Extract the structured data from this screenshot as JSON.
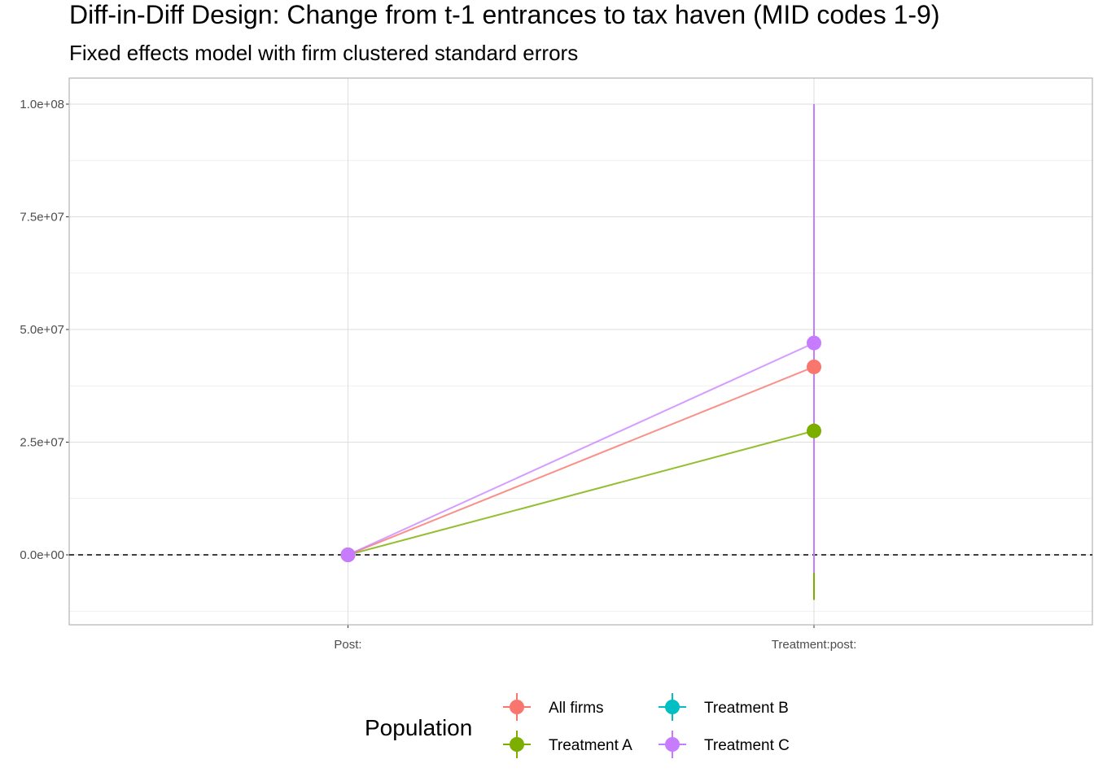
{
  "chart_data": {
    "type": "scatter",
    "title": "Diff-in-Diff Design: Change from t-1 entrances to tax haven (MID codes 1-9)",
    "subtitle": "Fixed effects model with firm clustered standard errors",
    "xlabel": "",
    "ylabel": "",
    "categories": [
      "Post:",
      "Treatment:post:"
    ],
    "ylim": [
      -12000000,
      104000000
    ],
    "yticks": [
      0,
      25000000,
      50000000,
      75000000,
      100000000
    ],
    "ytick_labels": [
      "0.0e+00",
      "2.5e+07",
      "5.0e+07",
      "7.5e+07",
      "1.0e+08"
    ],
    "reference_line": 0,
    "grid": true,
    "legend": {
      "title": "Population",
      "position": "bottom"
    },
    "series": [
      {
        "name": "All firms",
        "color": "#F8766D",
        "values": [
          0,
          41700000
        ],
        "ci_low": [
          0,
          null
        ],
        "ci_high": [
          0,
          null
        ]
      },
      {
        "name": "Treatment A",
        "color": "#7CAE00",
        "values": [
          0,
          27500000
        ],
        "ci_low": [
          0,
          -10000000
        ],
        "ci_high": [
          0,
          null
        ]
      },
      {
        "name": "Treatment B",
        "color": "#00BFC4",
        "values": [
          null,
          null
        ],
        "ci_low": [
          null,
          null
        ],
        "ci_high": [
          null,
          null
        ]
      },
      {
        "name": "Treatment C",
        "color": "#C77CFF",
        "values": [
          0,
          47000000
        ],
        "ci_low": [
          0,
          -4000000
        ],
        "ci_high": [
          0,
          100000000
        ]
      }
    ]
  }
}
